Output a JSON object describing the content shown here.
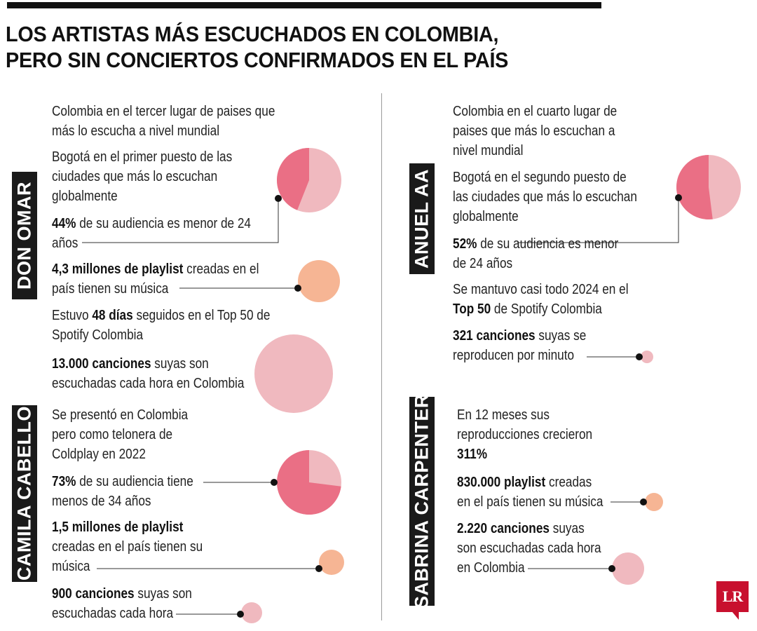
{
  "title": {
    "line1": "LOS ARTISTAS MÁS ESCUCHADOS EN COLOMBIA,",
    "line2": "PERO SIN CONCIERTOS CONFIRMADOS EN EL PAÍS"
  },
  "colors": {
    "pink_dark": "#ea6f85",
    "pink_light": "#f0b9bf",
    "peach": "#f6b594",
    "label_bg": "#1a1a1a",
    "logo": "#c8102e"
  },
  "don_omar": {
    "name": "DON OMAR",
    "f1": [
      "Colombia en el tercer lugar de paises que",
      "más lo escucha a nivel mundial"
    ],
    "f2": [
      "Bogotá en el primer puesto de las",
      "ciudades que más lo escuchan",
      "globalmente"
    ],
    "f3_bold": "44%",
    "f3_rest": " de su audiencia es menor de 24",
    "f3_l2": "años",
    "f4_bold": "4,3 millones de playlist",
    "f4_rest": " creadas en el",
    "f4_l2": "país tienen su música",
    "f5_pre": "Estuvo ",
    "f5_bold": "48 días",
    "f5_rest": " seguidos en el Top 50 de",
    "f5_l2": "Spotify Colombia",
    "f6_bold": "13.000 canciones",
    "f6_rest": " suyas son",
    "f6_l2": "escuchadas cada hora en Colombia",
    "audience_share": 0.44
  },
  "camila_cabello": {
    "name": "CAMILA CABELLO",
    "f1": [
      "Se presentó en Colombia",
      "pero como telonera de",
      "Coldplay en 2022"
    ],
    "f2_bold": "73%",
    "f2_rest": " de su audiencia tiene",
    "f2_l2": "menos de 34 años",
    "f3_bold": "1,5 millones de playlist",
    "f3_l2": "creadas en el país tienen su",
    "f3_l3": "música",
    "f4_bold": "900 canciones",
    "f4_rest": " suyas son",
    "f4_l2": "escuchadas cada hora",
    "audience_share": 0.73
  },
  "anuel_aa": {
    "name": "ANUEL AA",
    "f1": [
      "Colombia en el cuarto lugar de",
      "paises que más lo escuchan a",
      "nivel mundial"
    ],
    "f2": [
      "Bogotá en el segundo puesto de",
      "las ciudades que más lo escuchan",
      "globalmente"
    ],
    "f3_bold": "52%",
    "f3_rest": " de su audiencia es menor",
    "f3_l2": "de 24 años",
    "f4_l1": "Se mantuvo casi todo 2024 en el",
    "f4_bold": "Top 50",
    "f4_rest": " de Spotify Colombia",
    "f5_bold": "321 canciones",
    "f5_rest": " suyas se",
    "f5_l2": "reproducen por minuto",
    "audience_share": 0.52
  },
  "sabrina_carpenter": {
    "name": "SABRINA CARPENTER",
    "f1": [
      "En 12 meses sus",
      "reproducciones crecieron"
    ],
    "f1_bold": "311%",
    "f2_bold": "830.000 playlist",
    "f2_rest": " creadas",
    "f2_l2": "en el país tienen su música",
    "f3_bold": "2.220 canciones",
    "f3_rest": " suyas",
    "f3_l2": "son escuchadas cada hora",
    "f3_l3": "en Colombia"
  },
  "logo": "LR"
}
